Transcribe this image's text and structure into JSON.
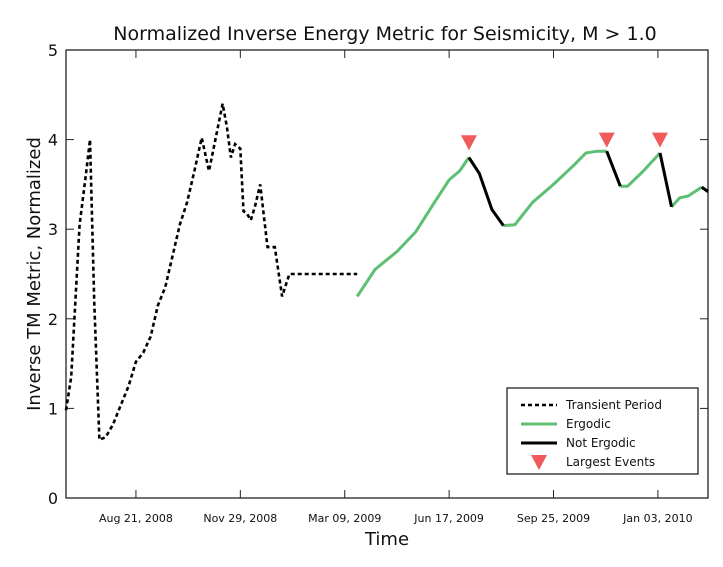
{
  "chart_data": {
    "type": "line",
    "title": "Normalized Inverse Energy Metric for Seismicity, M > 1.0",
    "xlabel": "Time",
    "ylabel": "Inverse TM Metric, Normalized",
    "ylim": [
      0,
      5
    ],
    "yticks": [
      "0",
      "1",
      "2",
      "3",
      "4",
      "5"
    ],
    "xlim": [
      "2008-06-15",
      "2010-02-20"
    ],
    "xticks": [
      {
        "label": "Aug 21, 2008",
        "date": "2008-08-21"
      },
      {
        "label": "Nov 29, 2008",
        "date": "2008-11-29"
      },
      {
        "label": "Mar 09, 2009",
        "date": "2009-03-09"
      },
      {
        "label": "Jun 17, 2009",
        "date": "2009-06-17"
      },
      {
        "label": "Sep 25, 2009",
        "date": "2009-09-25"
      },
      {
        "label": "Jan 03, 2010",
        "date": "2010-01-03"
      }
    ],
    "series": [
      {
        "name": "Transient Period",
        "style": "dotted",
        "color": "#000000",
        "x": [
          "2008-06-15",
          "2008-06-20",
          "2008-06-28",
          "2008-07-04",
          "2008-07-08",
          "2008-07-12",
          "2008-07-17",
          "2008-07-23",
          "2008-07-30",
          "2008-08-07",
          "2008-08-14",
          "2008-08-21",
          "2008-08-28",
          "2008-09-04",
          "2008-09-11",
          "2008-09-18",
          "2008-09-25",
          "2008-10-02",
          "2008-10-09",
          "2008-10-16",
          "2008-10-23",
          "2008-10-30",
          "2008-11-06",
          "2008-11-12",
          "2008-11-16",
          "2008-11-20",
          "2008-11-24",
          "2008-11-29",
          "2008-12-02",
          "2008-12-05",
          "2008-12-09",
          "2008-12-13",
          "2008-12-18",
          "2008-12-25",
          "2009-01-01",
          "2009-01-08",
          "2009-01-15",
          "2009-01-22",
          "2009-01-28",
          "2009-02-04",
          "2009-02-11",
          "2009-02-18",
          "2009-02-25",
          "2009-03-04",
          "2009-03-09",
          "2009-03-14",
          "2009-03-21"
        ],
        "y": [
          0.98,
          1.35,
          3.05,
          3.6,
          4.0,
          2.2,
          0.65,
          0.68,
          0.82,
          1.05,
          1.25,
          1.52,
          1.62,
          1.8,
          2.15,
          2.35,
          2.7,
          3.05,
          3.3,
          3.65,
          4.02,
          3.65,
          4.05,
          4.4,
          4.15,
          3.8,
          3.95,
          3.9,
          3.2,
          3.18,
          3.1,
          3.25,
          3.5,
          2.8,
          2.8,
          2.25,
          2.5,
          2.5,
          2.5,
          2.5,
          2.5,
          2.5,
          2.5,
          2.5,
          2.5,
          2.5,
          2.5
        ]
      },
      {
        "name": "Ergodic",
        "style": "solid",
        "color": "#5cbf72",
        "segments": [
          {
            "x": [
              "2009-03-21",
              "2009-04-07",
              "2009-04-28",
              "2009-05-16",
              "2009-06-03",
              "2009-06-17",
              "2009-06-27",
              "2009-07-06"
            ],
            "y": [
              2.25,
              2.55,
              2.75,
              2.97,
              3.3,
              3.55,
              3.65,
              3.8
            ]
          },
          {
            "x": [
              "2009-08-08",
              "2009-08-19",
              "2009-09-05",
              "2009-09-25",
              "2009-10-15",
              "2009-10-26",
              "2009-11-06",
              "2009-11-15"
            ],
            "y": [
              3.04,
              3.05,
              3.3,
              3.5,
              3.72,
              3.85,
              3.87,
              3.87
            ]
          },
          {
            "x": [
              "2009-11-28",
              "2009-12-05",
              "2009-12-20",
              "2010-01-05"
            ],
            "y": [
              3.48,
              3.48,
              3.65,
              3.85
            ]
          },
          {
            "x": [
              "2010-01-16",
              "2010-01-24",
              "2010-02-01",
              "2010-02-14"
            ],
            "y": [
              3.25,
              3.35,
              3.37,
              3.47
            ]
          }
        ]
      },
      {
        "name": "Not Ergodic",
        "style": "solid",
        "color": "#000000",
        "segments": [
          {
            "x": [
              "2009-07-06",
              "2009-07-16",
              "2009-07-28",
              "2009-08-08"
            ],
            "y": [
              3.8,
              3.62,
              3.22,
              3.04
            ]
          },
          {
            "x": [
              "2009-11-15",
              "2009-11-28"
            ],
            "y": [
              3.87,
              3.48
            ]
          },
          {
            "x": [
              "2010-01-05",
              "2010-01-16"
            ],
            "y": [
              3.85,
              3.25
            ]
          },
          {
            "x": [
              "2010-02-14",
              "2010-02-20"
            ],
            "y": [
              3.47,
              3.42
            ]
          }
        ]
      },
      {
        "name": "Largest Events",
        "style": "marker",
        "marker": "triangle-down",
        "color": "#ef5a5a",
        "x": [
          "2009-07-06",
          "2009-11-15",
          "2010-01-05"
        ],
        "y": [
          3.97,
          4.0,
          4.0
        ]
      }
    ],
    "legend": {
      "placement": "bottom-right",
      "items": [
        {
          "label": "Transient Period",
          "kind": "dotted",
          "color": "#000000"
        },
        {
          "label": "Ergodic",
          "kind": "line",
          "color": "#5cbf72"
        },
        {
          "label": "Not Ergodic",
          "kind": "line",
          "color": "#000000"
        },
        {
          "label": "Largest Events",
          "kind": "triangle-down",
          "color": "#ef5a5a"
        }
      ]
    },
    "grid": false
  }
}
